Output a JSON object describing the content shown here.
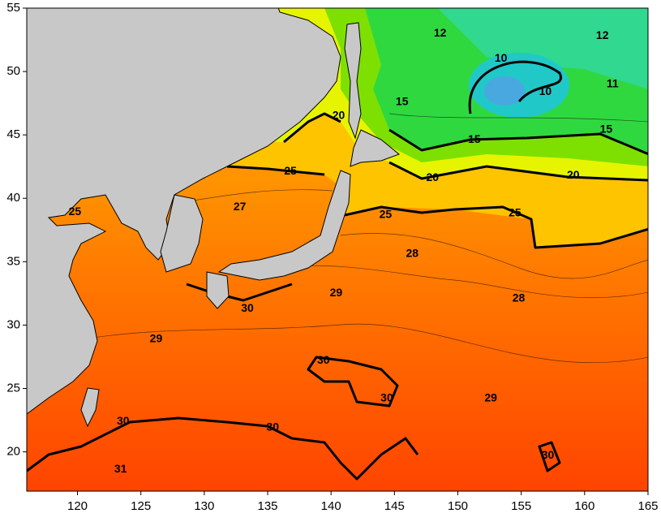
{
  "map": {
    "xlim": [
      116,
      165
    ],
    "ylim": [
      16.9,
      55
    ],
    "xticks": [
      120,
      125,
      130,
      135,
      140,
      145,
      150,
      155,
      160,
      165
    ],
    "yticks": [
      20,
      25,
      30,
      35,
      40,
      45,
      50,
      55
    ],
    "contour_labels": [
      {
        "value": 12,
        "lon": 148.6,
        "lat": 53.0
      },
      {
        "value": 12,
        "lon": 161.4,
        "lat": 52.8
      },
      {
        "value": 10,
        "lon": 153.4,
        "lat": 51.0
      },
      {
        "value": 10,
        "lon": 156.9,
        "lat": 48.4
      },
      {
        "value": 11,
        "lon": 162.2,
        "lat": 49.0
      },
      {
        "value": 15,
        "lon": 145.6,
        "lat": 47.6
      },
      {
        "value": 15,
        "lon": 151.3,
        "lat": 44.6
      },
      {
        "value": 15,
        "lon": 161.7,
        "lat": 45.4
      },
      {
        "value": 20,
        "lon": 140.6,
        "lat": 46.5
      },
      {
        "value": 20,
        "lon": 148.0,
        "lat": 41.6
      },
      {
        "value": 20,
        "lon": 159.1,
        "lat": 41.8
      },
      {
        "value": 25,
        "lon": 136.8,
        "lat": 42.1
      },
      {
        "value": 25,
        "lon": 144.3,
        "lat": 38.7
      },
      {
        "value": 25,
        "lon": 154.5,
        "lat": 38.8
      },
      {
        "value": 25,
        "lon": 119.8,
        "lat": 38.9
      },
      {
        "value": 27,
        "lon": 132.8,
        "lat": 39.3
      },
      {
        "value": 28,
        "lon": 146.4,
        "lat": 35.6
      },
      {
        "value": 28,
        "lon": 154.8,
        "lat": 32.1
      },
      {
        "value": 29,
        "lon": 140.4,
        "lat": 32.5
      },
      {
        "value": 29,
        "lon": 126.2,
        "lat": 28.9
      },
      {
        "value": 29,
        "lon": 152.6,
        "lat": 24.2
      },
      {
        "value": 30,
        "lon": 133.4,
        "lat": 31.3
      },
      {
        "value": 30,
        "lon": 139.4,
        "lat": 27.2
      },
      {
        "value": 30,
        "lon": 144.4,
        "lat": 24.2
      },
      {
        "value": 30,
        "lon": 123.6,
        "lat": 22.4
      },
      {
        "value": 30,
        "lon": 135.4,
        "lat": 21.9
      },
      {
        "value": 30,
        "lon": 157.1,
        "lat": 19.7
      },
      {
        "value": 31,
        "lon": 123.4,
        "lat": 18.6
      }
    ]
  }
}
